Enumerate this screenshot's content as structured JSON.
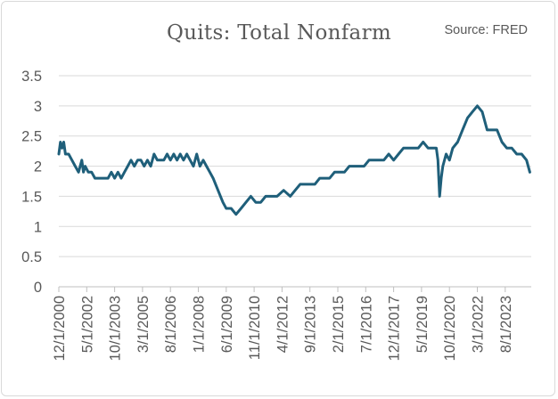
{
  "chart_data": {
    "type": "line",
    "title": "Quits: Total Nonfarm",
    "annotation": "Source: FRED",
    "xlabel": "",
    "ylabel": "",
    "ylim": [
      0,
      3.5
    ],
    "y_ticks": [
      "0",
      "0.5",
      "1",
      "1.5",
      "2",
      "2.5",
      "3",
      "3.5"
    ],
    "x_ticks": [
      "12/1/2000",
      "5/1/2002",
      "10/1/2003",
      "3/1/2005",
      "8/1/2006",
      "1/1/2008",
      "6/1/2009",
      "11/1/2010",
      "4/1/2012",
      "9/1/2013",
      "2/1/2015",
      "7/1/2016",
      "12/1/2017",
      "5/1/2019",
      "10/1/2020",
      "3/1/2022",
      "8/1/2023"
    ],
    "grid": "horizontal",
    "line_color": "#1f5f7a",
    "series": [
      {
        "x": [
          "2000-12",
          "2001-01",
          "2001-02",
          "2001-03",
          "2001-04",
          "2001-06",
          "2001-08",
          "2001-10",
          "2001-12",
          "2002-02",
          "2002-03",
          "2002-04",
          "2002-06",
          "2002-08",
          "2002-10",
          "2002-12",
          "2003-03",
          "2003-06",
          "2003-08",
          "2003-10",
          "2003-12",
          "2004-02",
          "2004-04",
          "2004-06",
          "2004-08",
          "2004-10",
          "2004-12",
          "2005-02",
          "2005-04",
          "2005-06",
          "2005-08",
          "2005-10",
          "2005-12",
          "2006-02",
          "2006-04",
          "2006-06",
          "2006-08",
          "2006-10",
          "2006-12",
          "2007-02",
          "2007-04",
          "2007-06",
          "2007-08",
          "2007-10",
          "2007-12",
          "2008-02",
          "2008-04",
          "2008-06",
          "2008-08",
          "2008-10",
          "2009-01",
          "2009-04",
          "2009-06",
          "2009-09",
          "2009-12",
          "2010-03",
          "2010-06",
          "2010-09",
          "2010-12",
          "2011-03",
          "2011-06",
          "2011-09",
          "2012-01",
          "2012-05",
          "2012-09",
          "2012-12",
          "2013-03",
          "2013-06",
          "2013-09",
          "2013-12",
          "2014-03",
          "2014-06",
          "2014-09",
          "2014-12",
          "2015-03",
          "2015-06",
          "2015-09",
          "2015-12",
          "2016-03",
          "2016-06",
          "2016-09",
          "2016-12",
          "2017-03",
          "2017-06",
          "2017-09",
          "2017-12",
          "2018-03",
          "2018-06",
          "2018-09",
          "2018-12",
          "2019-03",
          "2019-06",
          "2019-09",
          "2019-12",
          "2020-01",
          "2020-02",
          "2020-03",
          "2020-04",
          "2020-05",
          "2020-06",
          "2020-08",
          "2020-10",
          "2020-12",
          "2021-03",
          "2021-06",
          "2021-09",
          "2021-12",
          "2022-03",
          "2022-06",
          "2022-09",
          "2022-12",
          "2023-03",
          "2023-06",
          "2023-09",
          "2023-12",
          "2024-03",
          "2024-06",
          "2024-09",
          "2024-11"
        ],
        "values": [
          2.2,
          2.4,
          2.3,
          2.4,
          2.2,
          2.2,
          2.1,
          2.0,
          1.9,
          2.1,
          1.9,
          2.0,
          1.9,
          1.9,
          1.8,
          1.8,
          1.8,
          1.8,
          1.9,
          1.8,
          1.9,
          1.8,
          1.9,
          2.0,
          2.1,
          2.0,
          2.1,
          2.1,
          2.0,
          2.1,
          2.0,
          2.2,
          2.1,
          2.1,
          2.1,
          2.2,
          2.1,
          2.2,
          2.1,
          2.2,
          2.1,
          2.2,
          2.1,
          2.0,
          2.2,
          2.0,
          2.1,
          2.0,
          1.9,
          1.8,
          1.6,
          1.4,
          1.3,
          1.3,
          1.2,
          1.3,
          1.4,
          1.5,
          1.4,
          1.4,
          1.5,
          1.5,
          1.5,
          1.6,
          1.5,
          1.6,
          1.7,
          1.7,
          1.7,
          1.7,
          1.8,
          1.8,
          1.8,
          1.9,
          1.9,
          1.9,
          2.0,
          2.0,
          2.0,
          2.0,
          2.1,
          2.1,
          2.1,
          2.1,
          2.2,
          2.1,
          2.2,
          2.3,
          2.3,
          2.3,
          2.3,
          2.4,
          2.3,
          2.3,
          2.3,
          2.3,
          2.1,
          1.5,
          1.8,
          2.0,
          2.2,
          2.1,
          2.3,
          2.4,
          2.6,
          2.8,
          2.9,
          3.0,
          2.9,
          2.6,
          2.6,
          2.6,
          2.4,
          2.3,
          2.3,
          2.2,
          2.2,
          2.1,
          1.9
        ]
      }
    ]
  }
}
